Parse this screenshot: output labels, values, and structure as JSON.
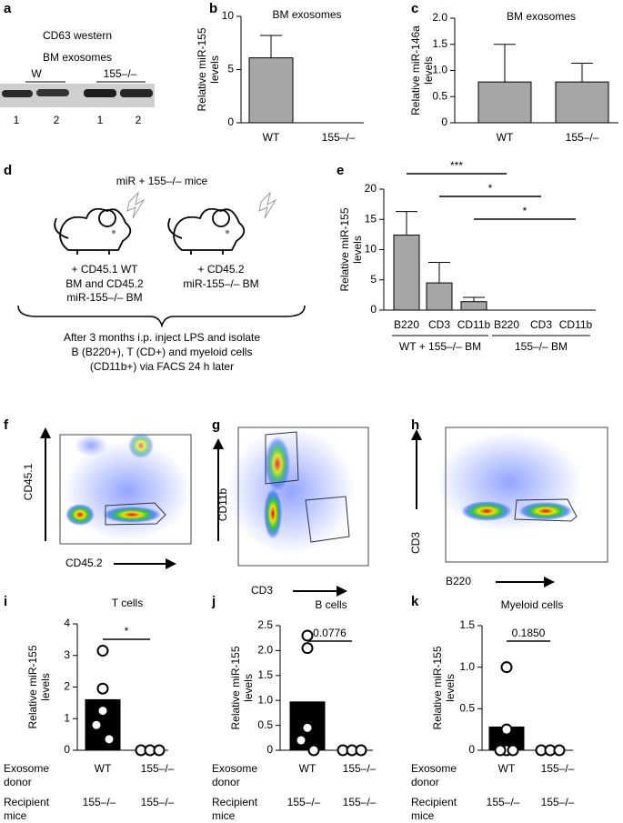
{
  "figure": {
    "panel_letters": [
      "a",
      "b",
      "c",
      "d",
      "e",
      "f",
      "g",
      "h",
      "i",
      "j",
      "k"
    ],
    "western": {
      "title": "CD63 western",
      "subtitle": "BM exosomes",
      "groups": [
        "W",
        "155–/–"
      ],
      "lanes": [
        "1",
        "2",
        "1",
        "2"
      ]
    },
    "diagram": {
      "title": "miR + 155–/– mice",
      "left": [
        "+ CD45.1 WT",
        "BM and CD45.2",
        "miR-155–/– BM"
      ],
      "right": [
        "+ CD45.2",
        "miR-155–/– BM"
      ],
      "bottom": [
        "After 3 months i.p. inject LPS and isolate",
        "B (B220+), T (CD+) and myeloid cells",
        "(CD11b+) via FACS 24 h later"
      ]
    },
    "flow": [
      {
        "y": "CD45.1",
        "x": "CD45.2"
      },
      {
        "y": "CD11b",
        "x": "CD3"
      },
      {
        "y": "CD3",
        "x": "B220"
      }
    ]
  },
  "chart_data": [
    {
      "type": "bar",
      "title": "BM exosomes",
      "ylabel": [
        "Relative miR-155",
        "levels"
      ],
      "categories": [
        "WT",
        "155–/–"
      ],
      "values": [
        6.1,
        0
      ],
      "errors": [
        2.1,
        null
      ],
      "color": "#a6a6a6",
      "ylim": [
        0,
        10
      ],
      "yticks": [
        0,
        5,
        10
      ]
    },
    {
      "type": "bar",
      "title": "BM exosomes",
      "ylabel": [
        "Relative miR-146a",
        "levels"
      ],
      "categories": [
        "WT",
        "155–/–"
      ],
      "values": [
        0.78,
        0.78
      ],
      "errors": [
        0.72,
        0.36
      ],
      "color": "#a6a6a6",
      "ylim": [
        0,
        2
      ],
      "yticks": [
        0,
        0.5,
        {
          "value": 1,
          "label": "1.0"
        },
        1.5,
        {
          "value": 2,
          "label": "2.0"
        }
      ]
    },
    {
      "type": "bar",
      "ylabel": [
        "Relative miR-155",
        "levels"
      ],
      "categories": [
        "B220",
        "CD3",
        "CD11b",
        "B220",
        "CD3",
        "CD11b"
      ],
      "values": [
        12.4,
        4.5,
        1.4,
        0,
        0,
        0
      ],
      "errors": [
        3.9,
        3.4,
        0.7,
        null,
        null,
        null
      ],
      "color": "#a6a6a6",
      "ylim": [
        0,
        20
      ],
      "yticks": [
        0,
        5,
        10,
        15,
        20
      ],
      "groups": [
        {
          "label": "WT + 155–/– BM",
          "from": 0,
          "to": 2
        },
        {
          "label": "155–/– BM",
          "from": 3,
          "to": 5
        }
      ],
      "annotations": [
        {
          "label": "***",
          "from": 0,
          "to": 3
        },
        {
          "label": "*",
          "from": 1,
          "to": 4
        },
        {
          "label": "*",
          "from": 2,
          "to": 5
        }
      ]
    },
    {
      "type": "bar",
      "title": "T cells",
      "ylabel": [
        "Relative miR-155",
        "levels"
      ],
      "categories": [
        "WT",
        "155–/–"
      ],
      "values": [
        1.6,
        0
      ],
      "points": [
        [
          3.15,
          1.95,
          1.25,
          0.8,
          0.35
        ],
        [
          0,
          0,
          0
        ]
      ],
      "color": "#000000",
      "ylim": [
        0,
        4
      ],
      "yticks": [
        0,
        1,
        2,
        3,
        4
      ],
      "annotations": [
        {
          "label": "*",
          "from": 0,
          "to": 1
        }
      ],
      "row_labels": [
        [
          "Exosome",
          "donor"
        ],
        [
          "Recipient",
          "mice"
        ]
      ],
      "recipient": [
        "155–/–",
        "155–/–"
      ]
    },
    {
      "type": "bar",
      "title": "B cells",
      "ylabel": [
        "Relative miR-155",
        "levels"
      ],
      "categories": [
        "WT",
        "155–/–"
      ],
      "values": [
        0.97,
        0
      ],
      "points": [
        [
          2.3,
          2.05,
          0.45,
          0.2,
          0
        ],
        [
          0,
          0,
          0
        ]
      ],
      "color": "#000000",
      "ylim": [
        0,
        2.5
      ],
      "yticks": [
        0,
        0.5,
        {
          "value": 1,
          "label": "1.0"
        },
        1.5,
        {
          "value": 2,
          "label": "2.0"
        },
        2.5
      ],
      "annotations": [
        {
          "label": "0.0776",
          "from": 0,
          "to": 1
        }
      ],
      "row_labels": [
        [
          "Exosome",
          "donor"
        ],
        [
          "Recipient",
          "mice"
        ]
      ],
      "recipient": [
        "155–/–",
        "155–/–"
      ]
    },
    {
      "type": "bar",
      "title": "Myeloid cells",
      "ylabel": [
        "Relative miR-155",
        "levels"
      ],
      "categories": [
        "WT",
        "155–/–"
      ],
      "values": [
        0.28,
        0
      ],
      "points": [
        [
          1,
          0.25,
          0,
          0,
          0
        ],
        [
          0,
          0,
          0
        ]
      ],
      "color": "#000000",
      "ylim": [
        0,
        1.5
      ],
      "yticks": [
        0,
        0.5,
        {
          "value": 1,
          "label": "1.0"
        },
        1.5
      ],
      "annotations": [
        {
          "label": "0.1850",
          "from": 0,
          "to": 1
        }
      ],
      "row_labels": [
        [
          "Exosome",
          "donor"
        ],
        [
          "Recipient",
          "mice"
        ]
      ],
      "recipient": [
        "155–/–",
        "155–/–"
      ]
    }
  ]
}
